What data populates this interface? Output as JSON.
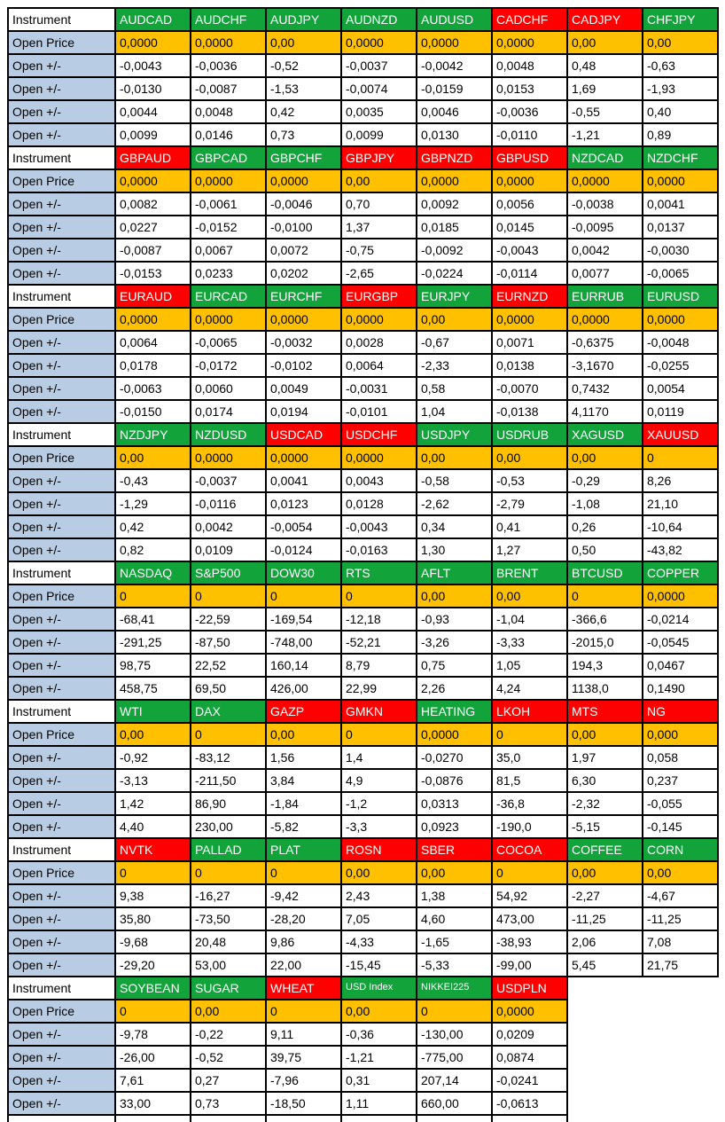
{
  "labels": {
    "instrument": "Instrument",
    "open_price": "Open Price",
    "open_delta": "Open +/-"
  },
  "colors": {
    "header_green": "#12A43B",
    "header_red": "#FF0000",
    "open_price_orange": "#FFC000",
    "row_label_blue": "#B8CCE4",
    "grid_border": "#000000"
  },
  "blocks": [
    {
      "instruments": [
        {
          "name": "AUDCAD",
          "color": "green"
        },
        {
          "name": "AUDCHF",
          "color": "green"
        },
        {
          "name": "AUDJPY",
          "color": "green"
        },
        {
          "name": "AUDNZD",
          "color": "green"
        },
        {
          "name": "AUDUSD",
          "color": "green"
        },
        {
          "name": "CADCHF",
          "color": "red"
        },
        {
          "name": "CADJPY",
          "color": "red"
        },
        {
          "name": "CHFJPY",
          "color": "green"
        }
      ],
      "open_price": [
        "0,0000",
        "0,0000",
        "0,00",
        "0,0000",
        "0,0000",
        "0,0000",
        "0,00",
        "0,00"
      ],
      "delta_rows": [
        [
          "-0,0043",
          "-0,0036",
          "-0,52",
          "-0,0037",
          "-0,0042",
          "0,0048",
          "0,48",
          "-0,63"
        ],
        [
          "-0,0130",
          "-0,0087",
          "-1,53",
          "-0,0074",
          "-0,0159",
          "0,0153",
          "1,69",
          "-1,93"
        ],
        [
          "0,0044",
          "0,0048",
          "0,42",
          "0,0035",
          "0,0046",
          "-0,0036",
          "-0,55",
          "0,40"
        ],
        [
          "0,0099",
          "0,0146",
          "0,73",
          "0,0099",
          "0,0130",
          "-0,0110",
          "-1,21",
          "0,89"
        ]
      ]
    },
    {
      "instruments": [
        {
          "name": "GBPAUD",
          "color": "red"
        },
        {
          "name": "GBPCAD",
          "color": "green"
        },
        {
          "name": "GBPCHF",
          "color": "green"
        },
        {
          "name": "GBPJPY",
          "color": "red"
        },
        {
          "name": "GBPNZD",
          "color": "red"
        },
        {
          "name": "GBPUSD",
          "color": "red"
        },
        {
          "name": "NZDCAD",
          "color": "green"
        },
        {
          "name": "NZDCHF",
          "color": "green"
        }
      ],
      "open_price": [
        "0,0000",
        "0,0000",
        "0,0000",
        "0,00",
        "0,0000",
        "0,0000",
        "0,0000",
        "0,0000"
      ],
      "delta_rows": [
        [
          "0,0082",
          "-0,0061",
          "-0,0046",
          "0,70",
          "0,0092",
          "0,0056",
          "-0,0038",
          "0,0041"
        ],
        [
          "0,0227",
          "-0,0152",
          "-0,0100",
          "1,37",
          "0,0185",
          "0,0145",
          "-0,0095",
          "0,0137"
        ],
        [
          "-0,0087",
          "0,0067",
          "0,0072",
          "-0,75",
          "-0,0092",
          "-0,0043",
          "0,0042",
          "-0,0030"
        ],
        [
          "-0,0153",
          "0,0233",
          "0,0202",
          "-2,65",
          "-0,0224",
          "-0,0114",
          "0,0077",
          "-0,0065"
        ]
      ]
    },
    {
      "instruments": [
        {
          "name": "EURAUD",
          "color": "red"
        },
        {
          "name": "EURCAD",
          "color": "green"
        },
        {
          "name": "EURCHF",
          "color": "green"
        },
        {
          "name": "EURGBP",
          "color": "red"
        },
        {
          "name": "EURJPY",
          "color": "green"
        },
        {
          "name": "EURNZD",
          "color": "red"
        },
        {
          "name": "EURRUB",
          "color": "green"
        },
        {
          "name": "EURUSD",
          "color": "green"
        }
      ],
      "open_price": [
        "0,0000",
        "0,0000",
        "0,0000",
        "0,0000",
        "0,00",
        "0,0000",
        "0,0000",
        "0,0000"
      ],
      "delta_rows": [
        [
          "0,0064",
          "-0,0065",
          "-0,0032",
          "0,0028",
          "-0,67",
          "0,0071",
          "-0,6375",
          "-0,0048"
        ],
        [
          "0,0178",
          "-0,0172",
          "-0,0102",
          "0,0064",
          "-2,33",
          "0,0138",
          "-3,1670",
          "-0,0255"
        ],
        [
          "-0,0063",
          "0,0060",
          "0,0049",
          "-0,0031",
          "0,58",
          "-0,0070",
          "0,7432",
          "0,0054"
        ],
        [
          "-0,0150",
          "0,0174",
          "0,0194",
          "-0,0101",
          "1,04",
          "-0,0138",
          "4,1170",
          "0,0119"
        ]
      ]
    },
    {
      "instruments": [
        {
          "name": "NZDJPY",
          "color": "green"
        },
        {
          "name": "NZDUSD",
          "color": "green"
        },
        {
          "name": "USDCAD",
          "color": "red"
        },
        {
          "name": "USDCHF",
          "color": "red"
        },
        {
          "name": "USDJPY",
          "color": "green"
        },
        {
          "name": "USDRUB",
          "color": "green"
        },
        {
          "name": "XAGUSD",
          "color": "green"
        },
        {
          "name": "XAUUSD",
          "color": "red"
        }
      ],
      "open_price": [
        "0,00",
        "0,0000",
        "0,0000",
        "0,0000",
        "0,00",
        "0,00",
        "0,00",
        "0"
      ],
      "delta_rows": [
        [
          "-0,43",
          "-0,0037",
          "0,0041",
          "0,0043",
          "-0,58",
          "-0,53",
          "-0,29",
          "8,26"
        ],
        [
          "-1,29",
          "-0,0116",
          "0,0123",
          "0,0128",
          "-2,62",
          "-2,79",
          "-1,08",
          "21,10"
        ],
        [
          "0,42",
          "0,0042",
          "-0,0054",
          "-0,0043",
          "0,34",
          "0,41",
          "0,26",
          "-10,64"
        ],
        [
          "0,82",
          "0,0109",
          "-0,0124",
          "-0,0163",
          "1,30",
          "1,27",
          "0,50",
          "-43,82"
        ]
      ]
    },
    {
      "instruments": [
        {
          "name": "NASDAQ",
          "color": "green"
        },
        {
          "name": "S&P500",
          "color": "green"
        },
        {
          "name": "DOW30",
          "color": "green"
        },
        {
          "name": "RTS",
          "color": "green"
        },
        {
          "name": "AFLT",
          "color": "green"
        },
        {
          "name": "BRENT",
          "color": "green"
        },
        {
          "name": "BTCUSD",
          "color": "green"
        },
        {
          "name": "COPPER",
          "color": "green"
        }
      ],
      "open_price": [
        "0",
        "0",
        "0",
        "0",
        "0,00",
        "0,00",
        "0",
        "0,0000"
      ],
      "delta_rows": [
        [
          "-68,41",
          "-22,59",
          "-169,54",
          "-12,18",
          "-0,93",
          "-1,04",
          "-366,6",
          "-0,0214"
        ],
        [
          "-291,25",
          "-87,50",
          "-748,00",
          "-52,21",
          "-3,26",
          "-3,33",
          "-2015,0",
          "-0,0545"
        ],
        [
          "98,75",
          "22,52",
          "160,14",
          "8,79",
          "0,75",
          "1,05",
          "194,3",
          "0,0467"
        ],
        [
          "458,75",
          "69,50",
          "426,00",
          "22,99",
          "2,26",
          "4,24",
          "1138,0",
          "0,1490"
        ]
      ]
    },
    {
      "instruments": [
        {
          "name": "WTI",
          "color": "green"
        },
        {
          "name": "DAX",
          "color": "green"
        },
        {
          "name": "GAZP",
          "color": "red"
        },
        {
          "name": "GMKN",
          "color": "red"
        },
        {
          "name": "HEATING",
          "color": "green"
        },
        {
          "name": "LKOH",
          "color": "red"
        },
        {
          "name": "MTS",
          "color": "red"
        },
        {
          "name": "NG",
          "color": "red"
        }
      ],
      "open_price": [
        "0,00",
        "0",
        "0,00",
        "0",
        "0,0000",
        "0",
        "0,00",
        "0,000"
      ],
      "delta_rows": [
        [
          "-0,92",
          "-83,12",
          "1,56",
          "1,4",
          "-0,0270",
          "35,0",
          "1,97",
          "0,058"
        ],
        [
          "-3,13",
          "-211,50",
          "3,84",
          "4,9",
          "-0,0876",
          "81,5",
          "6,30",
          "0,237"
        ],
        [
          "1,42",
          "86,90",
          "-1,84",
          "-1,2",
          "0,0313",
          "-36,8",
          "-2,32",
          "-0,055"
        ],
        [
          "4,40",
          "230,00",
          "-5,82",
          "-3,3",
          "0,0923",
          "-190,0",
          "-5,15",
          "-0,145"
        ]
      ]
    },
    {
      "instruments": [
        {
          "name": "NVTK",
          "color": "red"
        },
        {
          "name": "PALLAD",
          "color": "green"
        },
        {
          "name": "PLAT",
          "color": "green"
        },
        {
          "name": "ROSN",
          "color": "red"
        },
        {
          "name": "SBER",
          "color": "red"
        },
        {
          "name": "COCOA",
          "color": "red"
        },
        {
          "name": "COFFEE",
          "color": "green"
        },
        {
          "name": "CORN",
          "color": "green"
        }
      ],
      "open_price": [
        "0",
        "0",
        "0",
        "0,00",
        "0,00",
        "0",
        "0,00",
        "0,00"
      ],
      "delta_rows": [
        [
          "9,38",
          "-16,27",
          "-9,42",
          "2,43",
          "1,38",
          "54,92",
          "-2,27",
          "-4,67"
        ],
        [
          "35,80",
          "-73,50",
          "-28,20",
          "7,05",
          "4,60",
          "473,00",
          "-11,25",
          "-11,25"
        ],
        [
          "-9,68",
          "20,48",
          "9,86",
          "-4,33",
          "-1,65",
          "-38,93",
          "2,06",
          "7,08"
        ],
        [
          "-29,20",
          "53,00",
          "22,00",
          "-15,45",
          "-5,33",
          "-99,00",
          "5,45",
          "21,75"
        ]
      ]
    },
    {
      "instruments": [
        {
          "name": "SOYBEAN",
          "color": "green"
        },
        {
          "name": "SUGAR",
          "color": "green"
        },
        {
          "name": "WHEAT",
          "color": "red"
        },
        {
          "name": "USD Index",
          "color": "green",
          "small": true
        },
        {
          "name": "NIKKEI225",
          "color": "green",
          "small": true
        },
        {
          "name": "USDPLN",
          "color": "red"
        }
      ],
      "open_price": [
        "0",
        "0,00",
        "0",
        "0,00",
        "0",
        "0,0000"
      ],
      "delta_rows": [
        [
          "-9,78",
          "-0,22",
          "9,11",
          "-0,36",
          "-130,00",
          "0,0209"
        ],
        [
          "-26,00",
          "-0,52",
          "39,75",
          "-1,21",
          "-775,00",
          "0,0874"
        ],
        [
          "7,61",
          "0,27",
          "-7,96",
          "0,31",
          "207,14",
          "-0,0241"
        ],
        [
          "33,00",
          "0,73",
          "-18,50",
          "1,11",
          "660,00",
          "-0,0613"
        ]
      ]
    }
  ],
  "footer": {
    "partial_row_columns": 7
  }
}
